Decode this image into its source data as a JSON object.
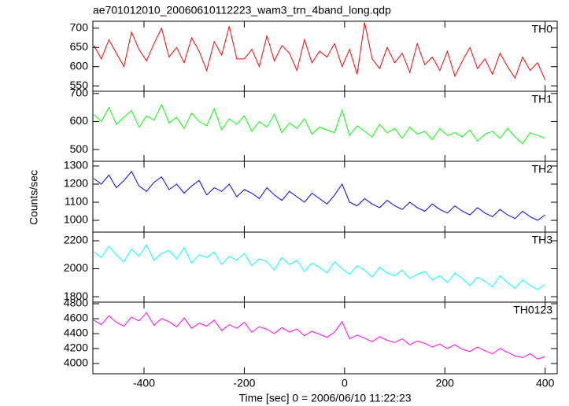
{
  "chart_data": {
    "type": "line",
    "title": "ae701012010_20060610112223_wam3_trn_4band_long.qdp",
    "ylabel": "Counts/sec",
    "xlabel": "Time [sec] 0 = 2006/06/10 11:22:23",
    "xlim": [
      -502,
      424
    ],
    "xticks": [
      -400,
      -200,
      0,
      200,
      400
    ],
    "x": [
      -500,
      -485,
      -470,
      -455,
      -440,
      -425,
      -410,
      -395,
      -380,
      -365,
      -350,
      -335,
      -320,
      -305,
      -290,
      -275,
      -260,
      -245,
      -230,
      -215,
      -200,
      -185,
      -170,
      -155,
      -140,
      -125,
      -110,
      -95,
      -80,
      -65,
      -50,
      -35,
      -20,
      -5,
      10,
      25,
      40,
      55,
      70,
      85,
      100,
      115,
      130,
      145,
      160,
      175,
      190,
      205,
      220,
      235,
      250,
      265,
      280,
      295,
      310,
      325,
      340,
      355,
      370,
      385,
      400
    ],
    "series": [
      {
        "name": "TH0",
        "color": "#ff0000",
        "ylim": [
          536,
          718
        ],
        "yticks": [
          550,
          600,
          650,
          700
        ],
        "values": [
          655,
          620,
          670,
          635,
          600,
          690,
          645,
          615,
          660,
          700,
          625,
          650,
          610,
          675,
          640,
          590,
          665,
          630,
          705,
          620,
          620,
          645,
          600,
          680,
          615,
          655,
          635,
          590,
          670,
          610,
          640,
          625,
          660,
          600,
          645,
          580,
          715,
          620,
          595,
          650,
          610,
          635,
          585,
          660,
          605,
          625,
          590,
          640,
          575,
          615,
          650,
          595,
          620,
          580,
          635,
          600,
          570,
          625,
          590,
          610,
          565
        ]
      },
      {
        "name": "TH1",
        "color": "#00ff00",
        "ylim": [
          458,
          708
        ],
        "yticks": [
          500,
          600,
          700
        ],
        "values": [
          625,
          600,
          650,
          590,
          615,
          640,
          580,
          620,
          605,
          660,
          595,
          615,
          575,
          630,
          600,
          585,
          645,
          570,
          610,
          590,
          620,
          565,
          600,
          580,
          625,
          560,
          595,
          575,
          610,
          555,
          580,
          570,
          560,
          640,
          550,
          585,
          565,
          545,
          590,
          560,
          575,
          540,
          580,
          555,
          565,
          535,
          575,
          550,
          560,
          545,
          570,
          530,
          555,
          565,
          540,
          575,
          545,
          520,
          560,
          550,
          540
        ]
      },
      {
        "name": "TH2",
        "color": "#0000ff",
        "ylim": [
          935,
          1326
        ],
        "yticks": [
          1000,
          1100,
          1200,
          1300
        ],
        "values": [
          1230,
          1200,
          1250,
          1180,
          1220,
          1270,
          1190,
          1160,
          1210,
          1240,
          1170,
          1200,
          1150,
          1190,
          1220,
          1140,
          1180,
          1160,
          1200,
          1130,
          1170,
          1150,
          1120,
          1180,
          1140,
          1110,
          1160,
          1130,
          1100,
          1150,
          1120,
          1090,
          1140,
          1200,
          1100,
          1080,
          1120,
          1090,
          1070,
          1110,
          1080,
          1060,
          1100,
          1070,
          1050,
          1090,
          1060,
          1040,
          1080,
          1050,
          1030,
          1070,
          1040,
          1020,
          1060,
          1030,
          1010,
          1050,
          1020,
          1000,
          1030
        ]
      },
      {
        "name": "TH3",
        "color": "#00ffff",
        "ylim": [
          1761,
          2262
        ],
        "yticks": [
          1800,
          2000,
          2200
        ],
        "values": [
          2120,
          2080,
          2160,
          2100,
          2050,
          2140,
          2090,
          2170,
          2060,
          2110,
          2130,
          2070,
          2150,
          2040,
          2100,
          2080,
          2120,
          2030,
          2090,
          2060,
          2110,
          2020,
          2070,
          2050,
          1990,
          2080,
          2030,
          2060,
          1980,
          2040,
          2010,
          1970,
          2050,
          2000,
          1960,
          2020,
          1990,
          1940,
          2010,
          1970,
          1950,
          1990,
          1930,
          1960,
          1980,
          1920,
          1950,
          1900,
          1970,
          1930,
          1880,
          1940,
          1910,
          1870,
          1950,
          1900,
          1860,
          1920,
          1880,
          1850,
          1890
        ]
      },
      {
        "name": "TH0123",
        "color": "#ff00ff",
        "ylim": [
          3863,
          4821
        ],
        "yticks": [
          4000,
          4200,
          4400,
          4600,
          4800
        ],
        "values": [
          4580,
          4520,
          4640,
          4550,
          4500,
          4620,
          4570,
          4680,
          4510,
          4600,
          4560,
          4490,
          4610,
          4470,
          4540,
          4500,
          4580,
          4440,
          4520,
          4470,
          4550,
          4420,
          4490,
          4460,
          4400,
          4480,
          4420,
          4460,
          4370,
          4430,
          4390,
          4350,
          4420,
          4560,
          4330,
          4380,
          4340,
          4290,
          4360,
          4310,
          4280,
          4330,
          4250,
          4300,
          4270,
          4220,
          4260,
          4200,
          4250,
          4190,
          4160,
          4220,
          4170,
          4130,
          4200,
          4150,
          4100,
          4080,
          4130,
          4060,
          4090
        ]
      }
    ]
  }
}
